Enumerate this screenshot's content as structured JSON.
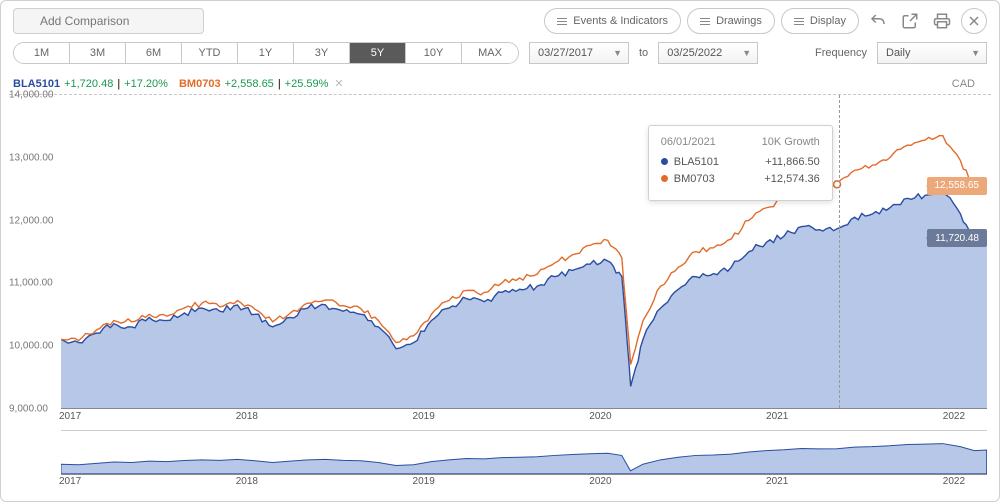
{
  "toolbar": {
    "add_comparison_placeholder": "Add Comparison",
    "events_btn": "Events & Indicators",
    "drawings_btn": "Drawings",
    "display_btn": "Display"
  },
  "ranges": {
    "items": [
      "1M",
      "3M",
      "6M",
      "YTD",
      "1Y",
      "3Y",
      "5Y",
      "10Y",
      "MAX"
    ],
    "active_index": 6
  },
  "dates": {
    "from": "03/27/2017",
    "to_label": "to",
    "to": "03/25/2022"
  },
  "frequency": {
    "label": "Frequency",
    "value": "Daily"
  },
  "legend": {
    "sym1": "BLA5101",
    "sym1_change": "+1,720.48",
    "sym1_pct": "+17.20%",
    "sym2": "BM0703",
    "sym2_change": "+2,558.65",
    "sym2_pct": "+25.59%",
    "currency": "CAD"
  },
  "chart": {
    "type": "line-area-comparison",
    "y": {
      "min": 9000,
      "max": 14000,
      "ticks": [
        14000,
        13000,
        12000,
        11000,
        10000,
        9000
      ],
      "tick_labels": [
        "14,000.00",
        "13,000.00",
        "12,000.00",
        "11,000.00",
        "10,000.00",
        "9,000.00"
      ]
    },
    "x": {
      "min": 2017,
      "max": 2022.25,
      "ticks": [
        2017,
        2018,
        2019,
        2020,
        2021,
        2022
      ],
      "tick_labels": [
        "2017",
        "2018",
        "2019",
        "2020",
        "2021",
        "2022"
      ]
    },
    "colors": {
      "series1_line": "#2b4da0",
      "series1_fill": "#9db4e0",
      "series2_line": "#e26b2a",
      "grid_dash": "#c5c5c5",
      "axis": "#888888",
      "tick_text": "#777777",
      "background": "#ffffff",
      "hover_line": "#999999",
      "flag1_bg": "#6b7a99",
      "flag2_bg": "#eda87a"
    },
    "line_width": 1.4,
    "series1": [
      [
        2017.0,
        10100
      ],
      [
        2017.1,
        10050
      ],
      [
        2017.2,
        10200
      ],
      [
        2017.3,
        10350
      ],
      [
        2017.4,
        10300
      ],
      [
        2017.5,
        10450
      ],
      [
        2017.6,
        10400
      ],
      [
        2017.7,
        10520
      ],
      [
        2017.8,
        10600
      ],
      [
        2017.9,
        10550
      ],
      [
        2018.0,
        10650
      ],
      [
        2018.1,
        10500
      ],
      [
        2018.2,
        10300
      ],
      [
        2018.3,
        10450
      ],
      [
        2018.4,
        10600
      ],
      [
        2018.5,
        10650
      ],
      [
        2018.6,
        10550
      ],
      [
        2018.7,
        10500
      ],
      [
        2018.8,
        10300
      ],
      [
        2018.9,
        9950
      ],
      [
        2019.0,
        10050
      ],
      [
        2019.1,
        10400
      ],
      [
        2019.2,
        10600
      ],
      [
        2019.3,
        10750
      ],
      [
        2019.4,
        10700
      ],
      [
        2019.5,
        10850
      ],
      [
        2019.6,
        10900
      ],
      [
        2019.7,
        10950
      ],
      [
        2019.8,
        11100
      ],
      [
        2019.9,
        11200
      ],
      [
        2020.0,
        11300
      ],
      [
        2020.1,
        11350
      ],
      [
        2020.18,
        11100
      ],
      [
        2020.23,
        9350
      ],
      [
        2020.3,
        10100
      ],
      [
        2020.4,
        10600
      ],
      [
        2020.5,
        10900
      ],
      [
        2020.6,
        11100
      ],
      [
        2020.7,
        11150
      ],
      [
        2020.8,
        11250
      ],
      [
        2020.9,
        11500
      ],
      [
        2021.0,
        11650
      ],
      [
        2021.1,
        11750
      ],
      [
        2021.2,
        11900
      ],
      [
        2021.3,
        11850
      ],
      [
        2021.4,
        11866
      ],
      [
        2021.5,
        12050
      ],
      [
        2021.6,
        12100
      ],
      [
        2021.7,
        12200
      ],
      [
        2021.8,
        12350
      ],
      [
        2021.9,
        12400
      ],
      [
        2022.0,
        12450
      ],
      [
        2022.1,
        12100
      ],
      [
        2022.18,
        11650
      ],
      [
        2022.25,
        11720
      ]
    ],
    "series2": [
      [
        2017.0,
        10100
      ],
      [
        2017.1,
        10080
      ],
      [
        2017.2,
        10250
      ],
      [
        2017.3,
        10400
      ],
      [
        2017.4,
        10380
      ],
      [
        2017.5,
        10500
      ],
      [
        2017.6,
        10470
      ],
      [
        2017.7,
        10600
      ],
      [
        2017.8,
        10680
      ],
      [
        2017.9,
        10620
      ],
      [
        2018.0,
        10720
      ],
      [
        2018.1,
        10580
      ],
      [
        2018.2,
        10380
      ],
      [
        2018.3,
        10520
      ],
      [
        2018.4,
        10680
      ],
      [
        2018.5,
        10730
      ],
      [
        2018.6,
        10640
      ],
      [
        2018.7,
        10590
      ],
      [
        2018.8,
        10400
      ],
      [
        2018.9,
        10050
      ],
      [
        2019.0,
        10160
      ],
      [
        2019.1,
        10500
      ],
      [
        2019.2,
        10720
      ],
      [
        2019.3,
        10880
      ],
      [
        2019.4,
        10850
      ],
      [
        2019.5,
        11000
      ],
      [
        2019.6,
        11080
      ],
      [
        2019.7,
        11140
      ],
      [
        2019.8,
        11320
      ],
      [
        2019.9,
        11450
      ],
      [
        2020.0,
        11600
      ],
      [
        2020.1,
        11680
      ],
      [
        2020.18,
        11400
      ],
      [
        2020.23,
        9700
      ],
      [
        2020.3,
        10400
      ],
      [
        2020.4,
        10950
      ],
      [
        2020.5,
        11250
      ],
      [
        2020.6,
        11500
      ],
      [
        2020.7,
        11560
      ],
      [
        2020.8,
        11700
      ],
      [
        2020.9,
        12000
      ],
      [
        2021.0,
        12200
      ],
      [
        2021.1,
        12350
      ],
      [
        2021.2,
        12550
      ],
      [
        2021.3,
        12500
      ],
      [
        2021.4,
        12574
      ],
      [
        2021.5,
        12800
      ],
      [
        2021.6,
        12880
      ],
      [
        2021.7,
        13000
      ],
      [
        2021.8,
        13200
      ],
      [
        2021.9,
        13280
      ],
      [
        2022.0,
        13350
      ],
      [
        2022.1,
        12950
      ],
      [
        2022.18,
        12500
      ],
      [
        2022.25,
        12558
      ]
    ],
    "hover": {
      "x": 2021.4
    },
    "flag1": {
      "value": "11,720.48"
    },
    "flag2": {
      "value": "12,558.65"
    }
  },
  "tooltip": {
    "date": "06/01/2021",
    "title": "10K Growth",
    "r1_label": "BLA5101",
    "r1_value": "+11,866.50",
    "r2_label": "BM0703",
    "r2_value": "+12,574.36"
  },
  "navigator": {
    "y": {
      "min": 9000,
      "max": 14000
    },
    "x_ticks": [
      2017,
      2018,
      2019,
      2020,
      2021,
      2022
    ],
    "x_labels": [
      "2017",
      "2018",
      "2019",
      "2020",
      "2021",
      "2022"
    ]
  }
}
